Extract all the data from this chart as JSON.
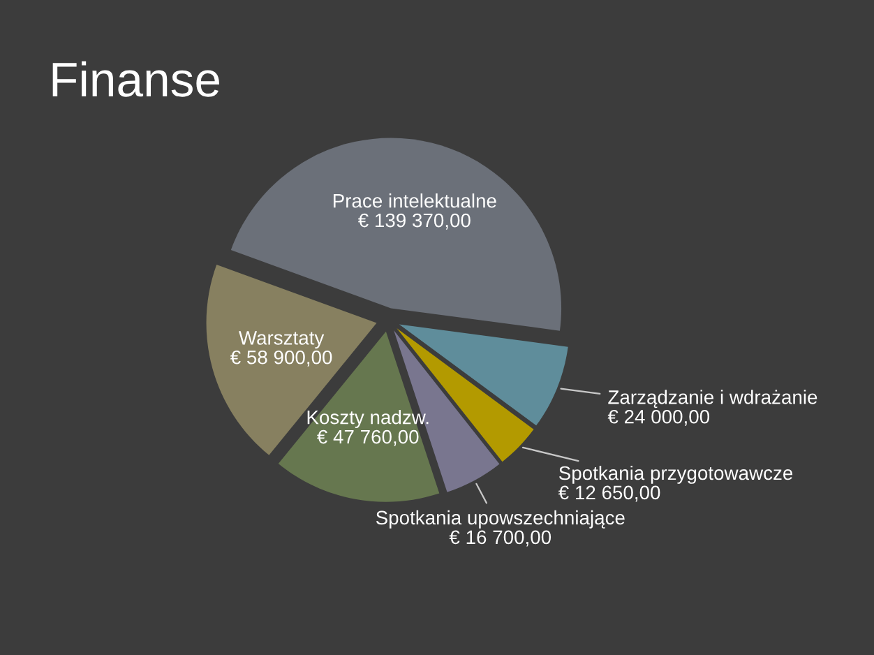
{
  "chart_data": {
    "type": "pie",
    "title": "Finanse",
    "categories": [
      "Prace intelektualne",
      "Zarządzanie i wdrażanie",
      "Spotkania przygotowawcze",
      "Spotkania upowszechniające",
      "Koszty nadzw.",
      "Warsztaty"
    ],
    "values": [
      139370,
      24000,
      12650,
      16700,
      47760,
      58900
    ],
    "colors": [
      "#6b7079",
      "#5f8d9b",
      "#b39a00",
      "#79768f",
      "#66774f",
      "#878060"
    ],
    "value_labels": [
      "€ 139 370,00",
      "€ 24 000,00",
      "€ 12 650,00",
      "€ 16 700,00",
      "€ 47 760,00",
      "€ 58 900,00"
    ]
  }
}
